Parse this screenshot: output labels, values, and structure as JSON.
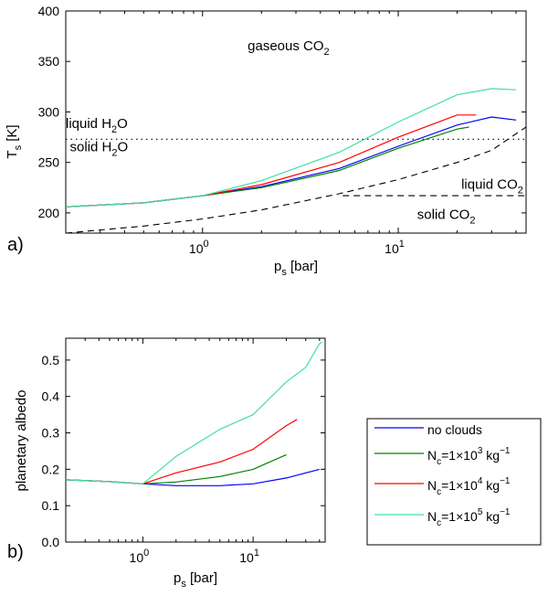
{
  "chart_data": [
    {
      "panel": "a)",
      "type": "line",
      "xscale": "log",
      "xlim": [
        0.2,
        45
      ],
      "ylim": [
        180,
        400
      ],
      "xlabel": {
        "main": "p",
        "sub": "s",
        "rest": " [bar]"
      },
      "ylabel": {
        "main": "T",
        "sub": "s",
        "rest": " [K]"
      },
      "xticks": [
        {
          "value": 1,
          "base": "10",
          "exp": "0"
        },
        {
          "value": 10,
          "base": "10",
          "exp": "1"
        }
      ],
      "yticks": [
        200,
        250,
        300,
        350,
        400
      ],
      "series": [
        {
          "name": "no clouds",
          "color": "#0000ff",
          "x": [
            0.2,
            0.5,
            1,
            2,
            5,
            10,
            20,
            30,
            40
          ],
          "y": [
            206,
            210,
            217,
            226,
            244,
            266,
            287,
            295,
            292
          ]
        },
        {
          "name": "Nc=1e3",
          "color": "#008000",
          "x": [
            0.2,
            0.5,
            1,
            2,
            5,
            10,
            20,
            23
          ],
          "y": [
            206,
            210,
            217,
            225,
            242,
            264,
            283,
            285
          ]
        },
        {
          "name": "Nc=1e4",
          "color": "#ff0000",
          "x": [
            0.2,
            0.5,
            1,
            2,
            5,
            10,
            20,
            25
          ],
          "y": [
            206,
            210,
            217,
            228,
            250,
            275,
            297,
            297
          ]
        },
        {
          "name": "Nc=1e5",
          "color": "#40e0a0",
          "x": [
            0.2,
            0.5,
            1,
            2,
            5,
            10,
            20,
            30,
            40
          ],
          "y": [
            206,
            210,
            217,
            232,
            260,
            290,
            317,
            323,
            322
          ]
        }
      ],
      "reference_lines": [
        {
          "name": "h2o-freezing-line",
          "style": "dotted",
          "x": [
            0.2,
            45
          ],
          "y": [
            273,
            273
          ]
        },
        {
          "name": "co2-saturation-curve",
          "style": "dashed",
          "x": [
            0.2,
            0.5,
            1,
            2,
            5,
            10,
            20,
            30,
            45
          ],
          "y": [
            180,
            187,
            194,
            203,
            219,
            233,
            250,
            262,
            285
          ]
        },
        {
          "name": "co2-melting-line",
          "style": "dashed",
          "x": [
            5.2,
            45
          ],
          "y": [
            217,
            217
          ]
        }
      ],
      "annotations": [
        {
          "key": "gaseous",
          "main": "gaseous CO",
          "sub": "2",
          "after": "",
          "x": 1.7,
          "y": 361
        },
        {
          "key": "liquid-h2o",
          "main": "liquid H",
          "sub": "2",
          "after": "O",
          "x": 0.2,
          "y": 284
        },
        {
          "key": "solid-h2o",
          "main": "solid H",
          "sub": "2",
          "after": "O",
          "x": 0.21,
          "y": 261
        },
        {
          "key": "liquid-co2",
          "main": "liquid CO",
          "sub": "2",
          "after": "",
          "x": 21,
          "y": 224
        },
        {
          "key": "solid-co2",
          "main": "solid CO",
          "sub": "2",
          "after": "",
          "x": 12.5,
          "y": 194
        }
      ]
    },
    {
      "panel": "b)",
      "type": "line",
      "xscale": "log",
      "xlim": [
        0.2,
        45
      ],
      "ylim": [
        0,
        0.56
      ],
      "xlabel": {
        "main": "p",
        "sub": "s",
        "rest": " [bar]"
      },
      "ylabel": "planetary albedo",
      "xticks": [
        {
          "value": 1,
          "base": "10",
          "exp": "0"
        },
        {
          "value": 10,
          "base": "10",
          "exp": "1"
        }
      ],
      "yticks": [
        0,
        0.1,
        0.2,
        0.3,
        0.4,
        0.5
      ],
      "series": [
        {
          "name": "no clouds",
          "color": "#0000ff",
          "x": [
            0.2,
            0.5,
            1,
            2,
            5,
            10,
            20,
            40
          ],
          "y": [
            0.171,
            0.166,
            0.16,
            0.155,
            0.155,
            0.16,
            0.176,
            0.2
          ]
        },
        {
          "name": "Nc=1e3",
          "color": "#008000",
          "x": [
            0.2,
            0.5,
            1,
            2,
            5,
            10,
            20
          ],
          "y": [
            0.171,
            0.166,
            0.16,
            0.165,
            0.18,
            0.2,
            0.24
          ]
        },
        {
          "name": "Nc=1e4",
          "color": "#ff0000",
          "x": [
            0.2,
            0.5,
            1,
            2,
            5,
            10,
            20,
            25
          ],
          "y": [
            0.171,
            0.166,
            0.16,
            0.19,
            0.22,
            0.255,
            0.32,
            0.337
          ]
        },
        {
          "name": "Nc=1e5",
          "color": "#40e0a0",
          "x": [
            0.2,
            0.5,
            1,
            2,
            5,
            10,
            20,
            30,
            40,
            42
          ],
          "y": [
            0.171,
            0.166,
            0.16,
            0.235,
            0.31,
            0.35,
            0.44,
            0.48,
            0.545,
            0.55
          ]
        }
      ]
    }
  ],
  "legend": {
    "position": "right",
    "entries": [
      {
        "color": "#0000ff",
        "text": "no clouds",
        "pre": "",
        "sub": "",
        "eq": "",
        "sup": "",
        "unit": "",
        "unitsup": ""
      },
      {
        "color": "#008000",
        "text": "",
        "pre": "N",
        "sub": "c",
        "eq": "=1×10",
        "sup": "3",
        "unit": " kg",
        "unitsup": "−1"
      },
      {
        "color": "#ff0000",
        "text": "",
        "pre": "N",
        "sub": "c",
        "eq": "=1×10",
        "sup": "4",
        "unit": " kg",
        "unitsup": "−1"
      },
      {
        "color": "#40e0a0",
        "text": "",
        "pre": "N",
        "sub": "c",
        "eq": "=1×10",
        "sup": "5",
        "unit": " kg",
        "unitsup": "−1"
      }
    ]
  }
}
